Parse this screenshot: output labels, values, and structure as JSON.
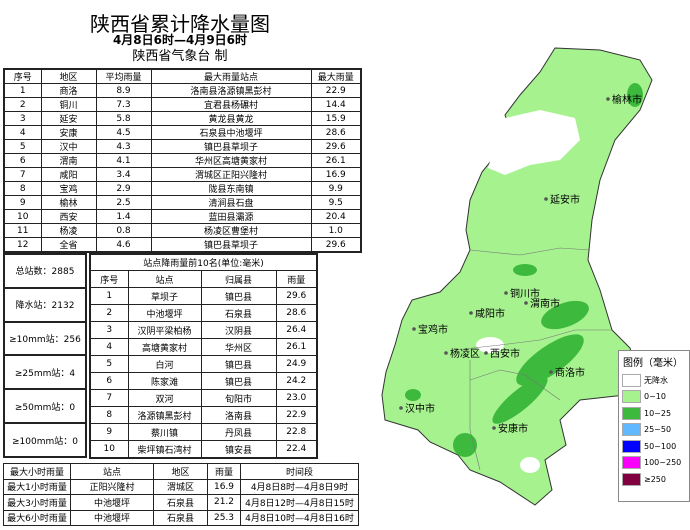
{
  "title": "陕西省累计降水量图",
  "period": "4月8日6时—4月9日6时",
  "issuer": "陕西省气象台 制",
  "region_table": {
    "headers": [
      "序号",
      "地区",
      "平均雨量",
      "最大雨量站点",
      "最大雨量"
    ],
    "rows": [
      [
        "1",
        "商洛",
        "8.9",
        "洛南县洛源镇黑彭村",
        "22.9"
      ],
      [
        "2",
        "铜川",
        "7.3",
        "宜君县杨碾村",
        "14.4"
      ],
      [
        "3",
        "延安",
        "5.8",
        "黄龙县黄龙",
        "15.9"
      ],
      [
        "4",
        "安康",
        "4.5",
        "石泉县中池堰坪",
        "28.6"
      ],
      [
        "5",
        "汉中",
        "4.3",
        "镇巴县草坝子",
        "29.6"
      ],
      [
        "6",
        "渭南",
        "4.1",
        "华州区高塘黄家村",
        "26.1"
      ],
      [
        "7",
        "咸阳",
        "3.4",
        "渭城区正阳兴隆村",
        "16.9"
      ],
      [
        "8",
        "宝鸡",
        "2.9",
        "陇县东南镇",
        "9.9"
      ],
      [
        "9",
        "榆林",
        "2.5",
        "清涧县石盘",
        "9.5"
      ],
      [
        "10",
        "西安",
        "1.4",
        "蓝田县灞源",
        "20.4"
      ],
      [
        "11",
        "杨凌",
        "0.8",
        "杨凌区曹堡村",
        "1.0"
      ],
      [
        "12",
        "全省",
        "4.6",
        "镇巴县草坝子",
        "29.6"
      ]
    ]
  },
  "stats": [
    "总站数：2885",
    "降水站：2132",
    "≥10mm站：256",
    "≥25mm站：4",
    "≥50mm站：0",
    "≥100mm站：0"
  ],
  "top10": {
    "title": "站点降雨量前10名(单位:毫米)",
    "headers": [
      "序号",
      "站点",
      "归属县",
      "雨量"
    ],
    "rows": [
      [
        "1",
        "草坝子",
        "镇巴县",
        "29.6"
      ],
      [
        "2",
        "中池堰坪",
        "石泉县",
        "28.6"
      ],
      [
        "3",
        "汉阴平梁柏杨",
        "汉阴县",
        "26.4"
      ],
      [
        "4",
        "高塘黄家村",
        "华州区",
        "26.1"
      ],
      [
        "5",
        "白河",
        "镇巴县",
        "24.9"
      ],
      [
        "6",
        "陈家滩",
        "镇巴县",
        "24.2"
      ],
      [
        "7",
        "双河",
        "旬阳市",
        "23.0"
      ],
      [
        "8",
        "洛源镇黑彭村",
        "洛南县",
        "22.9"
      ],
      [
        "9",
        "蔡川镇",
        "丹凤县",
        "22.8"
      ],
      [
        "10",
        "柴坪镇石湾村",
        "镇安县",
        "22.4"
      ]
    ]
  },
  "max_table": {
    "headers": [
      "最大小时雨量",
      "站点",
      "地区",
      "雨量",
      "时间段"
    ],
    "rows": [
      [
        "最大1小时雨量",
        "正阳兴隆村",
        "渭城区",
        "16.9",
        "4月8日8时—4月8日9时"
      ],
      [
        "最大3小时雨量",
        "中池堰坪",
        "石泉县",
        "21.2",
        "4月8日12时—4月8日15时"
      ],
      [
        "最大6小时雨量",
        "中池堰坪",
        "石泉县",
        "25.3",
        "4月8日10时—4月8日16时"
      ]
    ]
  },
  "map": {
    "cities": [
      "榆林市",
      "延安市",
      "铜川市",
      "渭南市",
      "咸阳市",
      "宝鸡市",
      "杨凌区",
      "西安市",
      "商洛市",
      "汉中市",
      "安康市"
    ]
  },
  "legend": {
    "title": "图例（毫米）",
    "items": [
      {
        "label": "无降水",
        "color": "#ffffff"
      },
      {
        "label": "0~10",
        "color": "#a6f28f"
      },
      {
        "label": "10~25",
        "color": "#3dba3d"
      },
      {
        "label": "25~50",
        "color": "#61b8ff"
      },
      {
        "label": "50~100",
        "color": "#0000fe"
      },
      {
        "label": "100~250",
        "color": "#fa00fa"
      },
      {
        "label": "≥250",
        "color": "#800040"
      }
    ]
  }
}
